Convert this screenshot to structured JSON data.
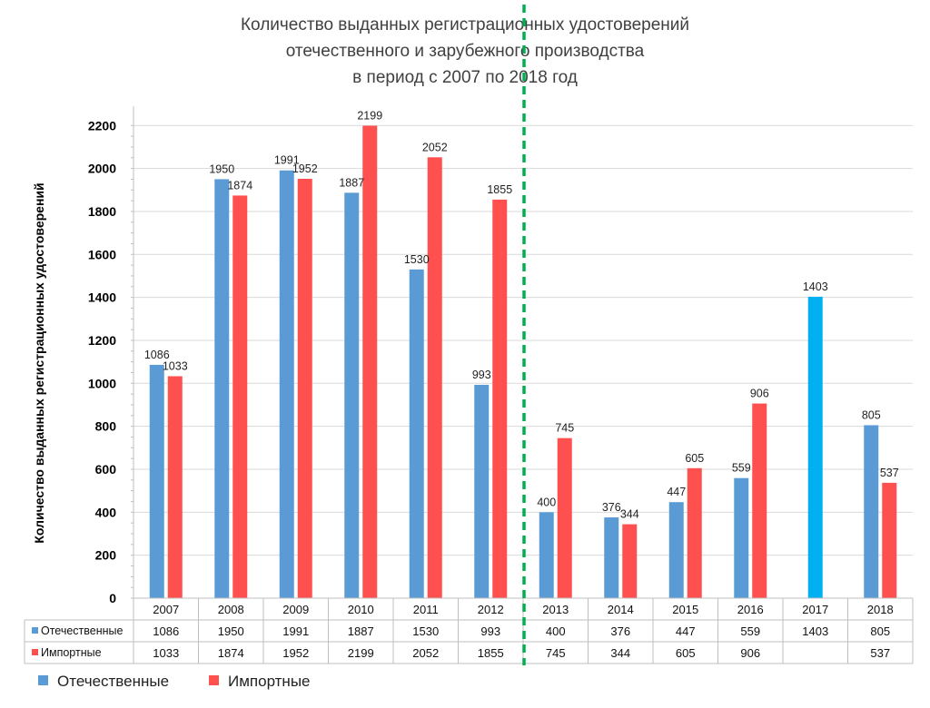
{
  "chart_data": {
    "type": "bar",
    "title": [
      "Количество выданных регистрационных удостоверений",
      "отечественного и зарубежного производства",
      "в период с 2007 по 2018 год"
    ],
    "ylabel": "Количество выданных регистрационных удостоверений",
    "ylim": [
      0,
      2200
    ],
    "yticks": [
      0,
      200,
      400,
      600,
      800,
      1000,
      1200,
      1400,
      1600,
      1800,
      2000,
      2200
    ],
    "grid": true,
    "legend_position": "bottom-left",
    "categories": [
      "2007",
      "2008",
      "2009",
      "2010",
      "2011",
      "2012",
      "2013",
      "2014",
      "2015",
      "2016",
      "2017",
      "2018"
    ],
    "series": [
      {
        "name": "Отечественные",
        "color": "#5b9bd5",
        "values": [
          1086,
          1950,
          1991,
          1887,
          1530,
          993,
          400,
          376,
          447,
          559,
          1403,
          805
        ],
        "labels": [
          "1086",
          "1950",
          "1991",
          "1887",
          "1530",
          "993",
          "400",
          "376",
          "447",
          "559",
          "1403",
          "805"
        ]
      },
      {
        "name": "Импортные",
        "color": "#ff5050",
        "values": [
          1033,
          1874,
          1952,
          2199,
          2052,
          1855,
          745,
          344,
          605,
          906,
          null,
          537
        ],
        "labels": [
          "1033",
          "1874",
          "1952",
          "2199",
          "2052",
          "1855",
          "745",
          "344",
          "605",
          "906",
          "",
          "537"
        ]
      }
    ],
    "highlight": {
      "category": "2017",
      "series": "Отечественные",
      "color": "#00b0f0"
    },
    "divider": {
      "after_category": "2012",
      "color": "#00b050",
      "style": "dashed"
    }
  }
}
